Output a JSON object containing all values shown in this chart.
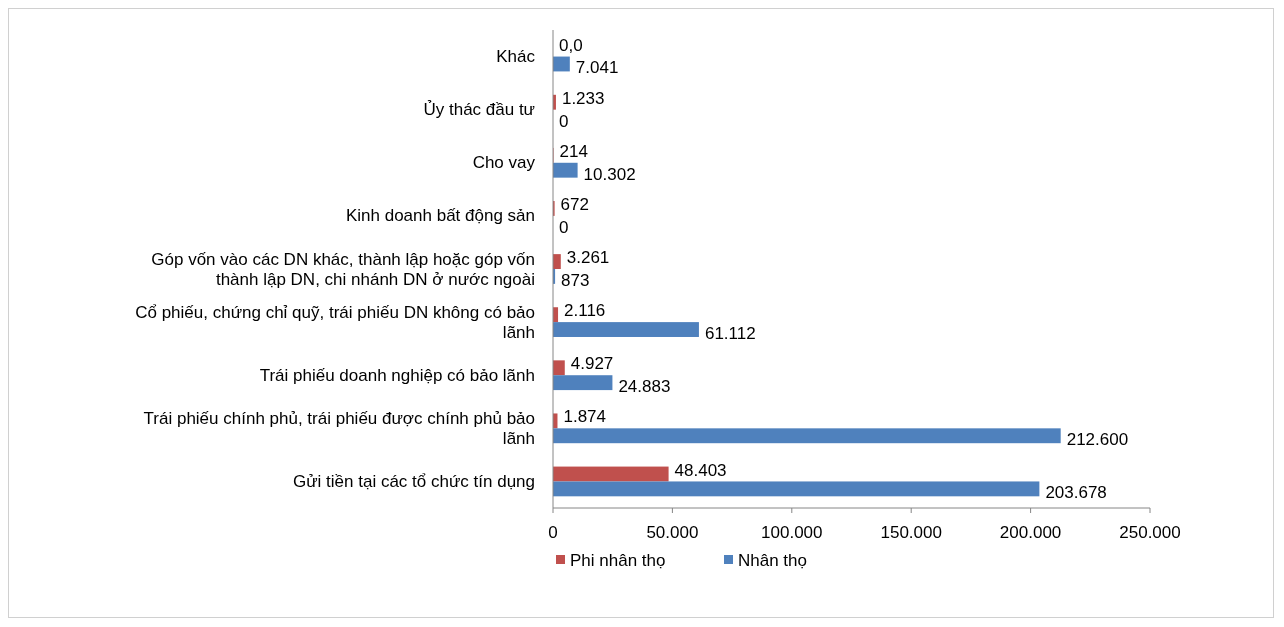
{
  "chart_data": {
    "type": "bar",
    "orientation": "horizontal",
    "categories": [
      "Khác",
      "Ủy thác đầu tư",
      "Cho vay",
      "Kinh doanh bất động sản",
      "Góp vốn vào các DN khác, thành lập hoặc góp vốn thành lập DN, chi nhánh DN ở nước ngoài",
      "Cổ phiếu, chứng chỉ quỹ, trái phiếu DN không có bảo lãnh",
      "Trái phiếu doanh nghiệp có bảo lãnh",
      "Trái phiếu chính phủ, trái phiếu được chính phủ bảo lãnh",
      "Gửi tiền tại các tổ chức tín dụng"
    ],
    "series": [
      {
        "name": "Phi nhân thọ",
        "color": "#c0504d",
        "values": [
          0,
          1233,
          214,
          672,
          3261,
          2116,
          4927,
          1874,
          48403
        ],
        "value_labels": [
          "0,0",
          "1.233",
          "214",
          "672",
          "3.261",
          "2.116",
          "4.927",
          "1.874",
          "48.403"
        ]
      },
      {
        "name": "Nhân thọ",
        "color": "#4f81bd",
        "values": [
          7041,
          0,
          10302,
          0,
          873,
          61112,
          24883,
          212600,
          203678
        ],
        "value_labels": [
          "7.041",
          "0",
          "10.302",
          "0",
          "873",
          "61.112",
          "24.883",
          "212.600",
          "203.678"
        ]
      }
    ],
    "xlim": [
      0,
      250000
    ],
    "xticks": [
      0,
      {
        "value": 50000,
        "label": "50.000"
      },
      {
        "value": 100000,
        "label": "100.000"
      },
      {
        "value": 150000,
        "label": "150.000"
      },
      {
        "value": 200000,
        "label": "200.000"
      },
      {
        "value": 250000,
        "label": "250.000"
      }
    ],
    "grid": false,
    "legend": "bottom"
  }
}
